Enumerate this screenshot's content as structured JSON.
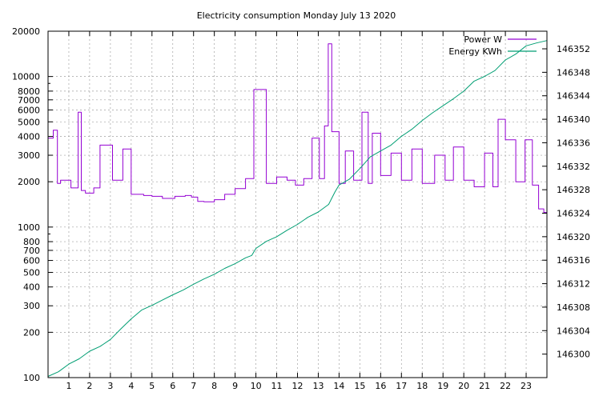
{
  "chart_data": {
    "type": "line",
    "title": "Electricity consumption Monday July 13 2020",
    "xlabel": "",
    "ylabel": "",
    "y2label": "",
    "grid": true,
    "legend_position": "top-right",
    "x_range": [
      0,
      24
    ],
    "x_ticks": [
      1,
      2,
      3,
      4,
      5,
      6,
      7,
      8,
      9,
      10,
      11,
      12,
      13,
      14,
      15,
      16,
      17,
      18,
      19,
      20,
      21,
      22,
      23
    ],
    "y_scale": "log",
    "y_range": [
      100,
      20000
    ],
    "y_ticks": [
      {
        "value": 100,
        "label": "100"
      },
      {
        "value": 200,
        "label": "200"
      },
      {
        "value": 300,
        "label": "300"
      },
      {
        "value": 400,
        "label": "400"
      },
      {
        "value": 500,
        "label": "500"
      },
      {
        "value": 600,
        "label": "600"
      },
      {
        "value": 700,
        "label": "700"
      },
      {
        "value": 800,
        "label": "800"
      },
      {
        "value": 1000,
        "label": "1000"
      },
      {
        "value": 2000,
        "label": "2000"
      },
      {
        "value": 3000,
        "label": "3000"
      },
      {
        "value": 4000,
        "label": "4000"
      },
      {
        "value": 5000,
        "label": "5000"
      },
      {
        "value": 6000,
        "label": "6000"
      },
      {
        "value": 7000,
        "label": "7000"
      },
      {
        "value": 8000,
        "label": "8000"
      },
      {
        "value": 10000,
        "label": "10000"
      },
      {
        "value": 20000,
        "label": "20000"
      }
    ],
    "y2_range": [
      146296,
      146355
    ],
    "y2_ticks": [
      146300,
      146304,
      146308,
      146312,
      146316,
      146320,
      146324,
      146328,
      146332,
      146336,
      146340,
      146344,
      146348,
      146352
    ],
    "series": [
      {
        "name": "Power W",
        "axis": "y",
        "color": "#9400d3",
        "x": [
          0,
          0.25,
          0.45,
          0.6,
          1.1,
          1.45,
          1.6,
          1.8,
          2.2,
          2.5,
          3.1,
          3.6,
          4.0,
          4.6,
          5.0,
          5.5,
          6.1,
          6.6,
          6.9,
          7.2,
          7.5,
          8.0,
          8.5,
          9.0,
          9.5,
          9.9,
          10.5,
          11.0,
          11.5,
          11.9,
          12.3,
          12.7,
          13.05,
          13.3,
          13.48,
          13.65,
          14.0,
          14.3,
          14.7,
          15.1,
          15.4,
          15.6,
          16.0,
          16.5,
          17.0,
          17.5,
          18.0,
          18.6,
          19.1,
          19.5,
          20.0,
          20.5,
          21.0,
          21.4,
          21.65,
          22.0,
          22.5,
          22.95,
          23.3,
          23.6,
          23.85,
          24.0
        ],
        "y": [
          3900,
          4400,
          1950,
          2050,
          1820,
          5800,
          1750,
          1680,
          1820,
          3500,
          2050,
          3300,
          1650,
          1620,
          1600,
          1550,
          1600,
          1620,
          1580,
          1480,
          1470,
          1520,
          1650,
          1800,
          2100,
          8200,
          1950,
          2150,
          2050,
          1900,
          2100,
          3900,
          2100,
          4700,
          16500,
          4300,
          1950,
          3200,
          2050,
          5800,
          1950,
          4200,
          2200,
          3100,
          2050,
          3300,
          1950,
          3000,
          2050,
          3400,
          2050,
          1850,
          3100,
          1850,
          5200,
          3800,
          2000,
          3800,
          1900,
          1320,
          1250,
          2950
        ]
      },
      {
        "name": "Energy KWh",
        "axis": "y2",
        "color": "#009e73",
        "x": [
          0,
          0.5,
          1.0,
          1.5,
          2.0,
          2.5,
          3.0,
          3.5,
          4.0,
          4.5,
          5.0,
          5.5,
          6.0,
          6.5,
          7.0,
          7.5,
          8.0,
          8.5,
          9.0,
          9.5,
          9.8,
          10.0,
          10.5,
          11.0,
          11.5,
          12.0,
          12.5,
          13.0,
          13.5,
          13.8,
          14.0,
          14.5,
          15.0,
          15.5,
          16.0,
          16.5,
          17.0,
          17.5,
          18.0,
          18.5,
          19.0,
          19.5,
          20.0,
          20.5,
          21.0,
          21.5,
          22.0,
          22.5,
          23.0,
          23.5,
          24.0
        ],
        "y": [
          146296.2,
          146297.0,
          146298.3,
          146299.2,
          146300.5,
          146301.3,
          146302.5,
          146304.3,
          146306.0,
          146307.5,
          146308.3,
          146309.2,
          146310.1,
          146310.9,
          146311.9,
          146312.8,
          146313.6,
          146314.6,
          146315.4,
          146316.4,
          146316.8,
          146318.0,
          146319.2,
          146320.0,
          146321.1,
          146322.1,
          146323.3,
          146324.2,
          146325.5,
          146327.6,
          146328.8,
          146329.8,
          146331.6,
          146333.6,
          146334.6,
          146335.6,
          146337.1,
          146338.3,
          146339.8,
          146341.1,
          146342.3,
          146343.5,
          146344.8,
          146346.5,
          146347.3,
          146348.3,
          146350.1,
          146351.1,
          146352.5,
          146353.0,
          146353.4
        ]
      }
    ]
  }
}
